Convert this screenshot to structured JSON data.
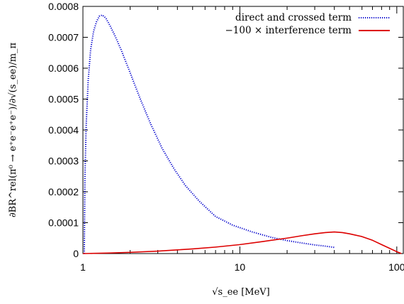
{
  "chart_data": {
    "type": "line",
    "xlabel": "√s_ee    [MeV]",
    "ylabel": "∂BR^rel(π⁰ → e⁺e⁻e⁺e⁻)/∂√(s_ee)/m_π",
    "xscale": "log",
    "xlim": [
      1,
      110
    ],
    "ylim": [
      0,
      0.0008
    ],
    "x_ticks": [
      "1",
      "10",
      "100"
    ],
    "y_ticks": [
      "0",
      "0.0001",
      "0.0002",
      "0.0003",
      "0.0004",
      "0.0005",
      "0.0006",
      "0.0007",
      "0.0008"
    ],
    "legend_position": "top-right",
    "series": [
      {
        "name": "direct and crossed term",
        "color": "#0000cc",
        "style": "dotted",
        "x": [
          1.02,
          1.03,
          1.05,
          1.08,
          1.12,
          1.17,
          1.22,
          1.27,
          1.33,
          1.4,
          1.48,
          1.6,
          1.75,
          2.0,
          2.3,
          2.7,
          3.2,
          3.8,
          4.5,
          5.5,
          7.0,
          9.0,
          12,
          16,
          20,
          25,
          30,
          35,
          40
        ],
        "y": [
          0.0,
          0.00025,
          0.00042,
          0.00056,
          0.00066,
          0.00072,
          0.00075,
          0.000768,
          0.000772,
          0.000762,
          0.00074,
          0.000705,
          0.00066,
          0.000585,
          0.000505,
          0.00042,
          0.00034,
          0.000275,
          0.00022,
          0.00017,
          0.00012,
          9.2e-05,
          7e-05,
          5.2e-05,
          4.2e-05,
          3.4e-05,
          2.8e-05,
          2.4e-05,
          2e-05
        ]
      },
      {
        "name": "−100 × interference term",
        "color": "#dd0000",
        "style": "solid",
        "x": [
          1.0,
          1.5,
          2,
          3,
          4,
          5,
          7,
          10,
          14,
          20,
          25,
          30,
          35,
          40,
          45,
          50,
          60,
          70,
          80,
          90,
          100,
          107
        ],
        "y": [
          0.0,
          2e-06,
          4e-06,
          8e-06,
          1.2e-05,
          1.5e-05,
          2.1e-05,
          2.9e-05,
          3.9e-05,
          5e-05,
          5.8e-05,
          6.4e-05,
          6.8e-05,
          7e-05,
          6.8e-05,
          6.4e-05,
          5.5e-05,
          4.3e-05,
          2.9e-05,
          1.7e-05,
          6e-06,
          0.0
        ]
      }
    ]
  }
}
